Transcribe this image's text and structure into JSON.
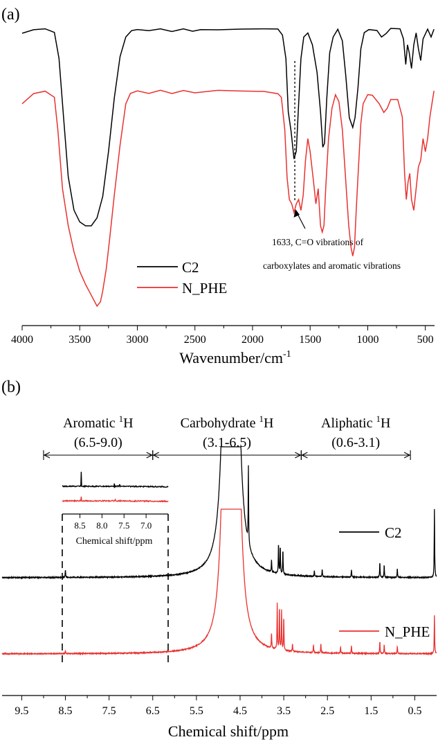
{
  "chart_data": [
    {
      "type": "line",
      "panel_label": "(a)",
      "xlabel": "Wavenumber/cm",
      "xlabel_sup": "-1",
      "xlim": [
        4000,
        420
      ],
      "x_reversed": true,
      "xticks": [
        "4000",
        "3500",
        "3000",
        "2500",
        "2000",
        "1500",
        "1000",
        "500"
      ],
      "y_axis_shown": false,
      "series": [
        {
          "name": "C2",
          "color": "#000000",
          "points": [
            [
              4000,
              0.02
            ],
            [
              3900,
              0.0
            ],
            [
              3800,
              0.0
            ],
            [
              3720,
              0.02
            ],
            [
              3680,
              0.15
            ],
            [
              3640,
              0.45
            ],
            [
              3600,
              0.75
            ],
            [
              3550,
              0.92
            ],
            [
              3500,
              0.98
            ],
            [
              3450,
              1.0
            ],
            [
              3400,
              1.0
            ],
            [
              3350,
              0.96
            ],
            [
              3300,
              0.85
            ],
            [
              3250,
              0.62
            ],
            [
              3200,
              0.35
            ],
            [
              3150,
              0.14
            ],
            [
              3100,
              0.04
            ],
            [
              3050,
              0.01
            ],
            [
              3000,
              0.0
            ],
            [
              2900,
              0.01
            ],
            [
              2800,
              0.0
            ],
            [
              2700,
              0.01
            ],
            [
              2600,
              0.0
            ],
            [
              2520,
              0.01
            ],
            [
              2450,
              0.0
            ],
            [
              2300,
              0.0
            ],
            [
              2100,
              0.0
            ],
            [
              1900,
              0.0
            ],
            [
              1780,
              0.0
            ],
            [
              1740,
              0.03
            ],
            [
              1710,
              0.15
            ],
            [
              1690,
              0.42
            ],
            [
              1665,
              0.52
            ],
            [
              1640,
              0.66
            ],
            [
              1620,
              0.62
            ],
            [
              1600,
              0.38
            ],
            [
              1580,
              0.15
            ],
            [
              1555,
              0.04
            ],
            [
              1520,
              0.02
            ],
            [
              1480,
              0.08
            ],
            [
              1440,
              0.22
            ],
            [
              1410,
              0.42
            ],
            [
              1390,
              0.6
            ],
            [
              1375,
              0.58
            ],
            [
              1355,
              0.35
            ],
            [
              1330,
              0.12
            ],
            [
              1300,
              0.04
            ],
            [
              1260,
              0.0
            ],
            [
              1220,
              0.06
            ],
            [
              1190,
              0.24
            ],
            [
              1160,
              0.45
            ],
            [
              1130,
              0.5
            ],
            [
              1110,
              0.45
            ],
            [
              1085,
              0.3
            ],
            [
              1060,
              0.1
            ],
            [
              1030,
              0.02
            ],
            [
              990,
              0.0
            ],
            [
              920,
              0.01
            ],
            [
              880,
              0.04
            ],
            [
              840,
              0.02
            ],
            [
              800,
              0.0
            ],
            [
              720,
              0.0
            ],
            [
              690,
              0.05
            ],
            [
              670,
              0.18
            ],
            [
              655,
              0.08
            ],
            [
              640,
              0.12
            ],
            [
              620,
              0.2
            ],
            [
              600,
              0.08
            ],
            [
              580,
              0.02
            ],
            [
              560,
              0.1
            ],
            [
              540,
              0.16
            ],
            [
              520,
              0.05
            ],
            [
              480,
              0.0
            ],
            [
              450,
              0.04
            ],
            [
              425,
              0.0
            ]
          ]
        },
        {
          "name": "N_PHE",
          "color": "#e8312f",
          "points": [
            [
              4000,
              0.06
            ],
            [
              3900,
              0.01
            ],
            [
              3800,
              0.0
            ],
            [
              3720,
              0.03
            ],
            [
              3690,
              0.18
            ],
            [
              3650,
              0.45
            ],
            [
              3600,
              0.62
            ],
            [
              3550,
              0.74
            ],
            [
              3500,
              0.83
            ],
            [
              3450,
              0.89
            ],
            [
              3400,
              0.94
            ],
            [
              3350,
              0.99
            ],
            [
              3320,
              0.97
            ],
            [
              3300,
              0.92
            ],
            [
              3270,
              0.82
            ],
            [
              3240,
              0.68
            ],
            [
              3200,
              0.48
            ],
            [
              3150,
              0.25
            ],
            [
              3100,
              0.06
            ],
            [
              3060,
              0.01
            ],
            [
              3000,
              0.0
            ],
            [
              2900,
              0.01
            ],
            [
              2800,
              0.0
            ],
            [
              2700,
              0.01
            ],
            [
              2600,
              0.0
            ],
            [
              2500,
              0.01
            ],
            [
              2300,
              0.0
            ],
            [
              2100,
              0.0
            ],
            [
              1900,
              0.0
            ],
            [
              1780,
              0.01
            ],
            [
              1750,
              0.03
            ],
            [
              1720,
              0.18
            ],
            [
              1700,
              0.4
            ],
            [
              1680,
              0.5
            ],
            [
              1660,
              0.52
            ],
            [
              1640,
              0.56
            ],
            [
              1620,
              0.52
            ],
            [
              1600,
              0.5
            ],
            [
              1580,
              0.55
            ],
            [
              1560,
              0.48
            ],
            [
              1540,
              0.32
            ],
            [
              1520,
              0.22
            ],
            [
              1500,
              0.28
            ],
            [
              1470,
              0.42
            ],
            [
              1450,
              0.52
            ],
            [
              1430,
              0.45
            ],
            [
              1410,
              0.62
            ],
            [
              1395,
              0.65
            ],
            [
              1380,
              0.62
            ],
            [
              1365,
              0.45
            ],
            [
              1340,
              0.22
            ],
            [
              1310,
              0.08
            ],
            [
              1280,
              0.02
            ],
            [
              1250,
              0.05
            ],
            [
              1220,
              0.18
            ],
            [
              1190,
              0.42
            ],
            [
              1165,
              0.62
            ],
            [
              1145,
              0.72
            ],
            [
              1130,
              0.76
            ],
            [
              1115,
              0.72
            ],
            [
              1100,
              0.55
            ],
            [
              1080,
              0.35
            ],
            [
              1060,
              0.15
            ],
            [
              1040,
              0.06
            ],
            [
              1000,
              0.02
            ],
            [
              960,
              0.02
            ],
            [
              900,
              0.06
            ],
            [
              860,
              0.1
            ],
            [
              830,
              0.08
            ],
            [
              800,
              0.04
            ],
            [
              740,
              0.04
            ],
            [
              700,
              0.12
            ],
            [
              680,
              0.38
            ],
            [
              665,
              0.5
            ],
            [
              650,
              0.42
            ],
            [
              635,
              0.38
            ],
            [
              620,
              0.5
            ],
            [
              600,
              0.55
            ],
            [
              580,
              0.45
            ],
            [
              560,
              0.35
            ],
            [
              540,
              0.32
            ],
            [
              520,
              0.22
            ],
            [
              500,
              0.28
            ],
            [
              480,
              0.22
            ],
            [
              460,
              0.12
            ],
            [
              440,
              0.05
            ],
            [
              425,
              0.0
            ]
          ]
        }
      ],
      "annotation": {
        "line1": "1633, C=O vibrations of",
        "line2": "carboxylates and aromatic vibrations",
        "x": 1633
      }
    },
    {
      "type": "line",
      "panel_label": "(b)",
      "xlabel": "Chemical shift/ppm",
      "xlim": [
        9.95,
        0.0
      ],
      "x_reversed": true,
      "xticks": [
        "9.5",
        "8.5",
        "7.5",
        "6.5",
        "5.5",
        "4.5",
        "3.5",
        "2.5",
        "1.5",
        "0.5"
      ],
      "y_axis_shown": false,
      "regions": [
        {
          "line1": "Aromatic ",
          "sup": "1",
          "line1_end": "H",
          "line2": "(6.5-9.0)",
          "from": 9.0,
          "to": 6.5
        },
        {
          "line1": "Carbohydrate ",
          "sup": "1",
          "line1_end": "H",
          "line2": "(3.1-6.5)",
          "from": 6.5,
          "to": 3.1
        },
        {
          "line1": "Aliphatic ",
          "sup": "1",
          "line1_end": "H",
          "line2": "(0.6-3.1)",
          "from": 3.1,
          "to": 0.6
        }
      ],
      "series": [
        {
          "name": "C2",
          "color": "#000000",
          "peaks": [
            [
              8.5,
              0.05
            ],
            [
              4.82,
              2.0
            ],
            [
              4.6,
              2.0
            ],
            [
              4.31,
              0.5
            ],
            [
              3.78,
              0.08
            ],
            [
              3.62,
              0.2
            ],
            [
              3.58,
              0.18
            ],
            [
              3.52,
              0.16
            ],
            [
              2.8,
              0.04
            ],
            [
              2.62,
              0.05
            ],
            [
              1.95,
              0.05
            ],
            [
              1.3,
              0.1
            ],
            [
              1.2,
              0.08
            ],
            [
              0.9,
              0.06
            ],
            [
              0.05,
              0.45
            ]
          ]
        },
        {
          "name": "N_PHE",
          "color": "#e8312f",
          "peaks": [
            [
              8.5,
              0.02
            ],
            [
              4.83,
              2.0
            ],
            [
              4.58,
              2.0
            ],
            [
              3.78,
              0.1
            ],
            [
              3.65,
              0.3
            ],
            [
              3.6,
              0.28
            ],
            [
              3.55,
              0.26
            ],
            [
              3.5,
              0.22
            ],
            [
              3.3,
              0.05
            ],
            [
              2.82,
              0.05
            ],
            [
              2.65,
              0.06
            ],
            [
              2.2,
              0.04
            ],
            [
              1.95,
              0.05
            ],
            [
              1.3,
              0.08
            ],
            [
              1.2,
              0.06
            ],
            [
              0.9,
              0.05
            ],
            [
              0.05,
              0.25
            ]
          ]
        }
      ],
      "inset": {
        "xlim": [
          8.9,
          6.5
        ],
        "xticks": [
          "8.5",
          "8.0",
          "7.5",
          "7.0"
        ],
        "xlabel": "Chemical shift/ppm"
      }
    }
  ]
}
